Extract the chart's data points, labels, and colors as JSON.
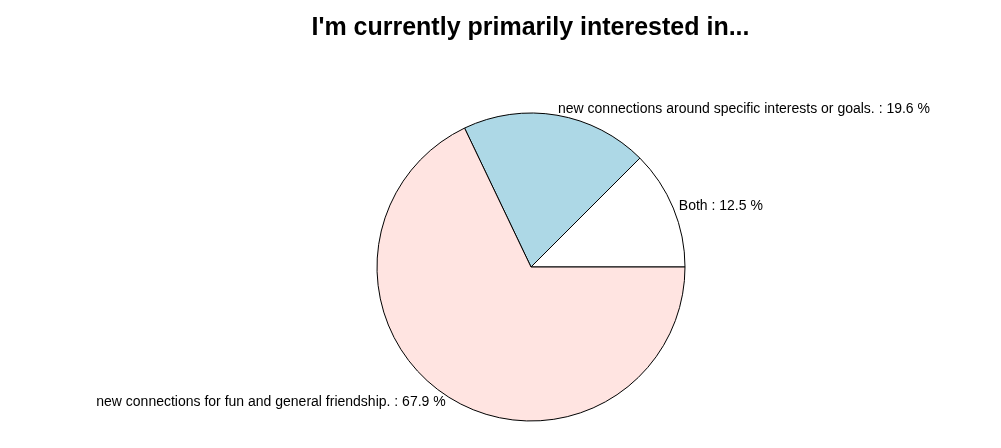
{
  "chart_data": {
    "type": "pie",
    "title": "I'm currently primarily interested in...",
    "categories": [
      "Both : 12.5 %",
      "new connections around specific interests or goals. : 19.6 %",
      "new connections for fun and general friendship. : 67.9 %"
    ],
    "values": [
      12.5,
      19.6,
      67.9
    ],
    "colors": [
      "#ffffff",
      "#add8e6",
      "#ffe4e1"
    ]
  }
}
